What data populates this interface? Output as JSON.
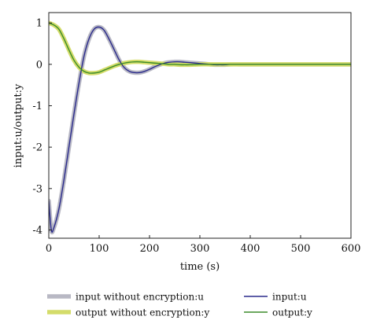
{
  "chart_data": {
    "type": "line",
    "xlabel": "time (s)",
    "ylabel": "input:u/output:y",
    "xlim": [
      0,
      600
    ],
    "ylim": [
      -4.2,
      1.25
    ],
    "xticks": [
      0,
      100,
      200,
      300,
      400,
      500,
      600
    ],
    "yticks": [
      1,
      0,
      -1,
      -2,
      -3,
      -4
    ],
    "grid": false,
    "legend_position": "bottom",
    "series": [
      {
        "name": "input without encryption:u",
        "color": "#b8b8c4",
        "style": "thick",
        "x": [
          0,
          5,
          10,
          20,
          30,
          40,
          50,
          60,
          70,
          80,
          90,
          100,
          110,
          120,
          130,
          140,
          150,
          160,
          170,
          180,
          190,
          200,
          210,
          220,
          230,
          240,
          250,
          260,
          270,
          280,
          290,
          300,
          310,
          320,
          330,
          340,
          350,
          360,
          380,
          400,
          450,
          500,
          550,
          600
        ],
        "values": [
          -3.3,
          -4.0,
          -3.95,
          -3.5,
          -2.8,
          -2.0,
          -1.2,
          -0.45,
          0.2,
          0.62,
          0.85,
          0.9,
          0.82,
          0.6,
          0.35,
          0.1,
          -0.08,
          -0.17,
          -0.2,
          -0.2,
          -0.17,
          -0.12,
          -0.06,
          -0.01,
          0.03,
          0.05,
          0.06,
          0.06,
          0.05,
          0.04,
          0.03,
          0.02,
          0.01,
          0.0,
          -0.01,
          -0.01,
          -0.01,
          0.0,
          0.0,
          0.0,
          0.0,
          0.0,
          0.0,
          0.0
        ]
      },
      {
        "name": "output without encryption:y",
        "color": "#d4dc6a",
        "style": "thick",
        "x": [
          0,
          10,
          20,
          30,
          40,
          50,
          60,
          70,
          80,
          90,
          100,
          110,
          120,
          130,
          140,
          150,
          160,
          170,
          180,
          190,
          200,
          210,
          220,
          230,
          240,
          250,
          260,
          270,
          280,
          300,
          320,
          340,
          360,
          400,
          450,
          500,
          550,
          600
        ],
        "values": [
          1.0,
          0.95,
          0.85,
          0.62,
          0.35,
          0.1,
          -0.07,
          -0.17,
          -0.21,
          -0.21,
          -0.19,
          -0.14,
          -0.09,
          -0.04,
          0.0,
          0.03,
          0.05,
          0.06,
          0.06,
          0.05,
          0.04,
          0.03,
          0.02,
          0.01,
          0.0,
          0.0,
          -0.01,
          -0.01,
          -0.01,
          0.0,
          0.0,
          0.0,
          0.0,
          0.0,
          0.0,
          0.0,
          0.0,
          0.0
        ]
      },
      {
        "name": "input:u",
        "color": "#2a2a8c",
        "style": "thin",
        "x": [
          0,
          5,
          10,
          20,
          30,
          40,
          50,
          60,
          70,
          80,
          90,
          100,
          110,
          120,
          130,
          140,
          150,
          160,
          170,
          180,
          190,
          200,
          210,
          220,
          230,
          240,
          250,
          260,
          270,
          280,
          290,
          300,
          310,
          320,
          330,
          340,
          350,
          360,
          380,
          400,
          450,
          500,
          550,
          600
        ],
        "values": [
          -3.3,
          -4.0,
          -3.95,
          -3.5,
          -2.8,
          -2.0,
          -1.2,
          -0.45,
          0.2,
          0.62,
          0.85,
          0.9,
          0.82,
          0.6,
          0.35,
          0.1,
          -0.08,
          -0.17,
          -0.2,
          -0.2,
          -0.17,
          -0.12,
          -0.06,
          -0.01,
          0.03,
          0.05,
          0.06,
          0.06,
          0.05,
          0.04,
          0.03,
          0.02,
          0.01,
          0.0,
          -0.01,
          -0.01,
          -0.01,
          0.0,
          0.0,
          0.0,
          0.0,
          0.0,
          0.0,
          0.0
        ]
      },
      {
        "name": "output:y",
        "color": "#3c8c2a",
        "style": "thin",
        "x": [
          0,
          10,
          20,
          30,
          40,
          50,
          60,
          70,
          80,
          90,
          100,
          110,
          120,
          130,
          140,
          150,
          160,
          170,
          180,
          190,
          200,
          210,
          220,
          230,
          240,
          250,
          260,
          270,
          280,
          300,
          320,
          340,
          360,
          400,
          450,
          500,
          550,
          600
        ],
        "values": [
          1.0,
          0.95,
          0.85,
          0.62,
          0.35,
          0.1,
          -0.07,
          -0.17,
          -0.21,
          -0.21,
          -0.19,
          -0.14,
          -0.09,
          -0.04,
          0.0,
          0.03,
          0.05,
          0.06,
          0.06,
          0.05,
          0.04,
          0.03,
          0.02,
          0.01,
          0.0,
          0.0,
          -0.01,
          -0.01,
          -0.01,
          0.0,
          0.0,
          0.0,
          0.0,
          0.0,
          0.0,
          0.0,
          0.0,
          0.0
        ]
      }
    ]
  }
}
